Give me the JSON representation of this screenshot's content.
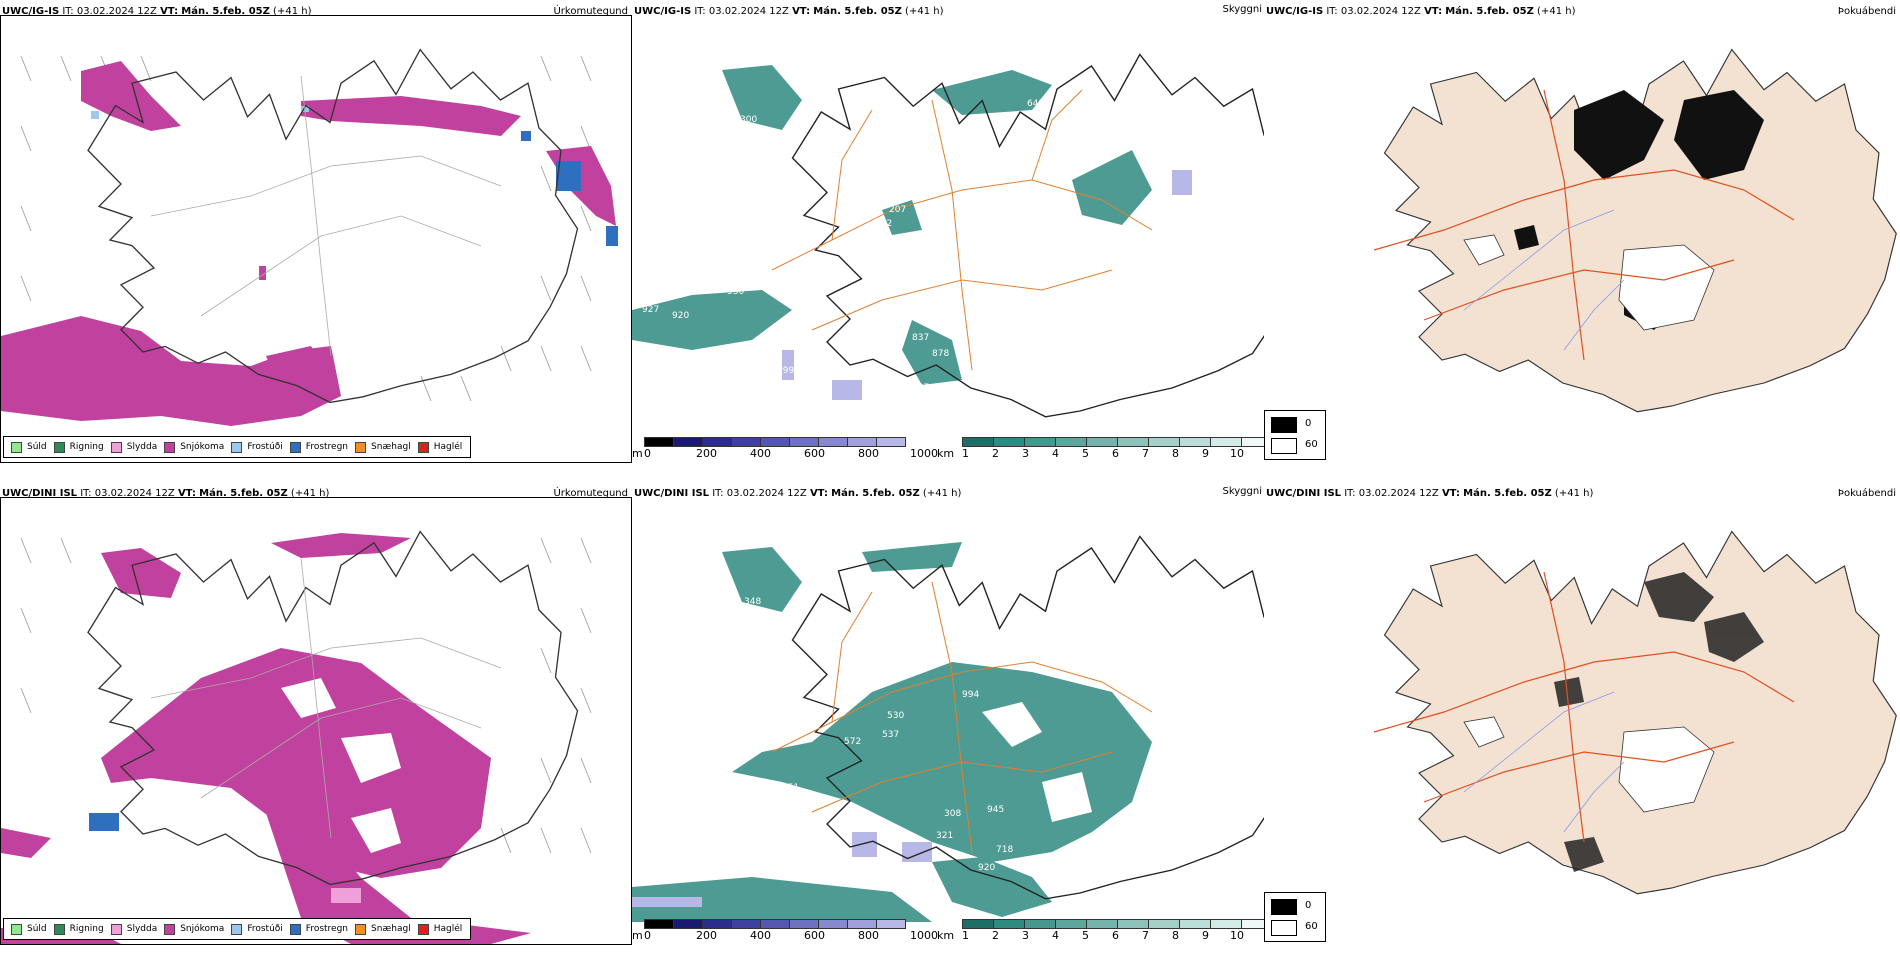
{
  "colors": {
    "sudd": "#90e890",
    "rigning": "#2e8b57",
    "slydda": "#f0a0d8",
    "snjokoma": "#c0429e",
    "frostudi": "#9cc8f0",
    "frostregn": "#2f6fc0",
    "snaehagl": "#f09020",
    "haglel": "#e02020",
    "teal": "#2f8a80",
    "orange": "#e08030",
    "terrain": "#f3e1d2"
  },
  "top": {
    "p1": {
      "model": "UWC/IG-IS",
      "it_label": "IT:",
      "it": "03.02.2024 12Z",
      "vt_label": "VT:",
      "vt": "Mán. 5.feb. 05Z",
      "lead": "(+41 h)",
      "title": "Úrkomutegund"
    },
    "p2": {
      "model": "UWC/IG-IS",
      "it_label": "IT:",
      "it": "03.02.2024 12Z",
      "vt_label": "VT:",
      "vt": "Mán. 5.feb. 05Z",
      "lead": "(+41 h)",
      "title": "Skyggni",
      "labels": [
        "300",
        "641",
        "927",
        "920",
        "930",
        "207",
        "512",
        "837",
        "878",
        "799",
        "987"
      ]
    },
    "p3": {
      "model": "UWC/IG-IS",
      "it_label": "IT:",
      "it": "03.02.2024 12Z",
      "vt_label": "VT:",
      "vt": "Mán. 5.feb. 05Z",
      "lead": "(+41 h)",
      "title": "Þokuábendi"
    }
  },
  "bottom": {
    "p1": {
      "model": "UWC/DINI ISL",
      "it_label": "IT:",
      "it": "03.02.2024 12Z",
      "vt_label": "VT:",
      "vt": "Mán. 5.feb. 05Z",
      "lead": "(+41 h)",
      "title": "Úrkomutegund"
    },
    "p2": {
      "model": "UWC/DINI ISL",
      "it_label": "IT:",
      "it": "03.02.2024 12Z",
      "vt_label": "VT:",
      "vt": "Mán. 5.feb. 05Z",
      "lead": "(+41 h)",
      "title": "Skyggni",
      "labels": [
        "348",
        "994",
        "530",
        "572",
        "537",
        "851",
        "308",
        "945",
        "321",
        "718",
        "920"
      ]
    },
    "p3": {
      "model": "UWC/DINI ISL",
      "it_label": "IT:",
      "it": "03.02.2024 12Z",
      "vt_label": "VT:",
      "vt": "Mán. 5.feb. 05Z",
      "lead": "(+41 h)",
      "title": "Þokuábendi"
    }
  },
  "precip_legend": [
    "Súld",
    "Rigning",
    "Slydda",
    "Snjókoma",
    "Frostúði",
    "Frostregn",
    "Snæhagl",
    "Haglél"
  ],
  "elev_scale": {
    "unit": "m",
    "ticks": [
      "0",
      "200",
      "400",
      "600",
      "800",
      "1000"
    ]
  },
  "vis_scale": {
    "unit": "km",
    "ticks": [
      "1",
      "2",
      "3",
      "4",
      "5",
      "6",
      "7",
      "8",
      "9",
      "10"
    ]
  },
  "fog_legend": {
    "high": "0",
    "low": "60"
  }
}
